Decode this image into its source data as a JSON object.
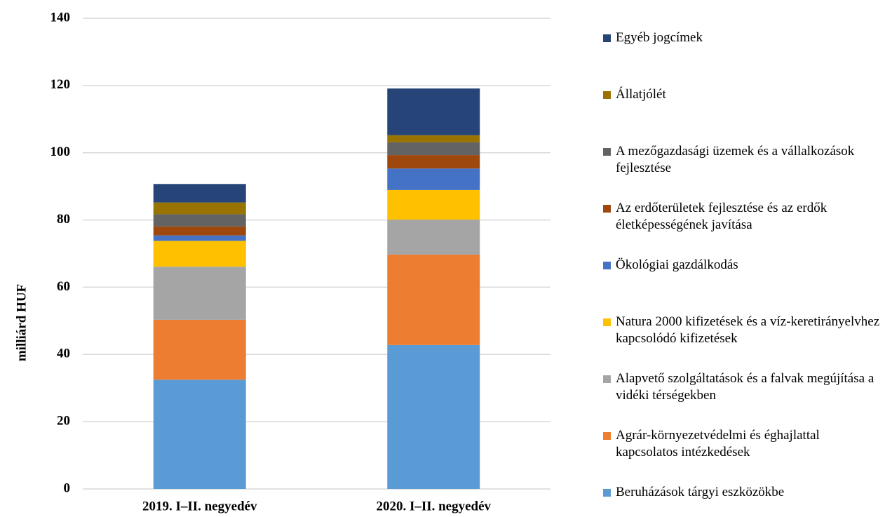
{
  "chart_data": {
    "type": "stacked_bar",
    "y_label": "milliárd HUF",
    "categories": [
      "2019. I–II. negyedév",
      "2020. I–II. negyedév"
    ],
    "series": [
      {
        "name": "Beruházások tárgyi eszközökbe",
        "color": "#5b9bd5",
        "values": [
          32.5,
          42.8
        ]
      },
      {
        "name": "Agrár-környezetvédelmi és éghajlattal kapcsolatos intézkedések",
        "color": "#ed7d31",
        "values": [
          17.8,
          26.9
        ]
      },
      {
        "name": "Alapvető szolgáltatások és a falvak megújítása a vidéki térségekben",
        "color": "#a5a5a5",
        "values": [
          15.8,
          10.4
        ]
      },
      {
        "name": "Natura 2000 kifizetések és a víz-keretirányelvhez kapcsolódó kifizetések",
        "color": "#ffc000",
        "values": [
          7.7,
          8.8
        ]
      },
      {
        "name": "Ökológiai gazdálkodás",
        "color": "#4472c4",
        "values": [
          1.6,
          6.4
        ]
      },
      {
        "name": "Az erdőterületek fejlesztése és az erdők életképességének javítása",
        "color": "#9e480e",
        "values": [
          2.7,
          4.0
        ]
      },
      {
        "name": "A mezőgazdasági üzemek és a vállalkozások fejlesztése",
        "color": "#636363",
        "values": [
          3.6,
          3.8
        ]
      },
      {
        "name": "Állatjólét",
        "color": "#997300",
        "values": [
          3.5,
          2.1
        ]
      },
      {
        "name": "Egyéb jogcímek",
        "color": "#264478",
        "values": [
          5.5,
          13.9
        ]
      }
    ],
    "ylim": [
      0,
      140
    ],
    "yticks": [
      0,
      20,
      40,
      60,
      80,
      100,
      120,
      140
    ],
    "grid": true,
    "legend": "right"
  }
}
